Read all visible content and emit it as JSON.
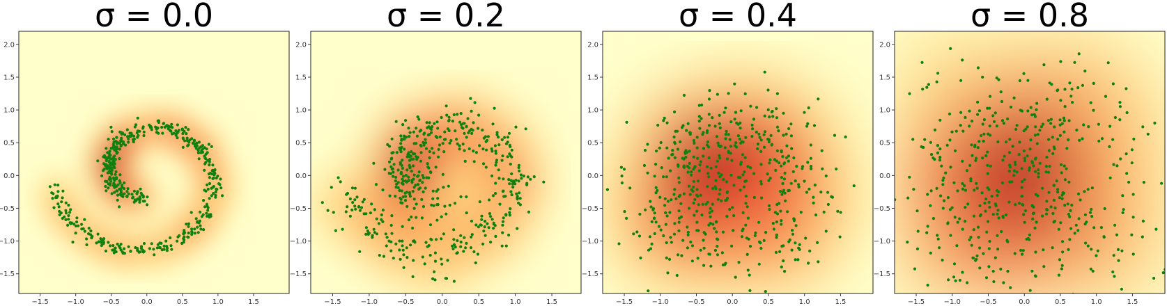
{
  "chart_data": [
    {
      "type": "heatmap",
      "title": "σ = 0.0",
      "sigma": 0.0,
      "xlim": [
        -1.8,
        2.0
      ],
      "ylim": [
        -1.8,
        2.2
      ],
      "xticks": [
        -1.5,
        -1.0,
        -0.5,
        0.0,
        0.5,
        1.0,
        1.5
      ],
      "xtick_labels": [
        "−1.5",
        "−1.0",
        "−0.5",
        "0.0",
        "0.5",
        "1.0",
        "1.5"
      ],
      "yticks": [
        -1.5,
        -1.0,
        -0.5,
        0.0,
        0.5,
        1.0,
        1.5,
        2.0
      ],
      "ytick_labels": [
        "−1.5",
        "−1.0",
        "−0.5",
        "0.0",
        "0.5",
        "1.0",
        "1.5",
        "2.0"
      ],
      "density": "spiral ring, densest near (0.5, -0.25)",
      "scatter_color": "#108010"
    },
    {
      "type": "heatmap",
      "title": "σ = 0.2",
      "sigma": 0.2,
      "xlim": [
        -1.8,
        1.9
      ],
      "ylim": [
        -1.8,
        2.2
      ],
      "xticks": [
        -1.5,
        -1.0,
        -0.5,
        0.0,
        0.5,
        1.0,
        1.5
      ],
      "xtick_labels": [
        "−1.5",
        "−1.0",
        "−0.5",
        "0.0",
        "0.5",
        "1.0",
        "1.5"
      ],
      "yticks": [
        -1.5,
        -1.0,
        -0.5,
        0.0,
        0.5,
        1.0,
        1.5,
        2.0
      ],
      "ytick_labels": [
        "−1.5",
        "−1.0",
        "−0.5",
        "0.0",
        "0.5",
        "1.0",
        "1.5",
        "2.0"
      ],
      "density": "blurred spiral ring, densest near (0.45, -0.3)",
      "scatter_color": "#108010"
    },
    {
      "type": "heatmap",
      "title": "σ = 0.4",
      "sigma": 0.4,
      "xlim": [
        -1.8,
        1.95
      ],
      "ylim": [
        -1.8,
        2.2
      ],
      "xticks": [
        -1.5,
        -1.0,
        -0.5,
        0.0,
        0.5,
        1.0,
        1.5
      ],
      "xtick_labels": [
        "−1.5",
        "−1.0",
        "−0.5",
        "0.0",
        "0.5",
        "1.0",
        "1.5"
      ],
      "yticks": [
        -1.5,
        -1.0,
        -0.5,
        0.0,
        0.5,
        1.0,
        1.5,
        2.0
      ],
      "ytick_labels": [
        "−1.5",
        "−1.0",
        "−0.5",
        "0.0",
        "0.5",
        "1.0",
        "1.5",
        "2.0"
      ],
      "density": "broad blob, densest near (0.6, -0.2)",
      "scatter_color": "#108010"
    },
    {
      "type": "heatmap",
      "title": "σ = 0.8",
      "sigma": 0.8,
      "xlim": [
        -1.8,
        1.95
      ],
      "ylim": [
        -1.8,
        2.2
      ],
      "xticks": [
        -1.5,
        -1.0,
        -0.5,
        0.0,
        0.5,
        1.0,
        1.5
      ],
      "xtick_labels": [
        "−1.5",
        "−1.0",
        "−0.5",
        "0.0",
        "0.5",
        "1.0",
        "1.5"
      ],
      "yticks": [
        -1.5,
        -1.0,
        -0.5,
        0.0,
        0.5,
        1.0,
        1.5,
        2.0
      ],
      "ytick_labels": [
        "−1.5",
        "−1.0",
        "−0.5",
        "0.0",
        "0.5",
        "1.0",
        "1.5",
        "2.0"
      ],
      "density": "single wide blob, densest near (0.1, 0.05)",
      "scatter_color": "#108010"
    }
  ],
  "colormap": "YlOrRd (light yellow to dark red)"
}
